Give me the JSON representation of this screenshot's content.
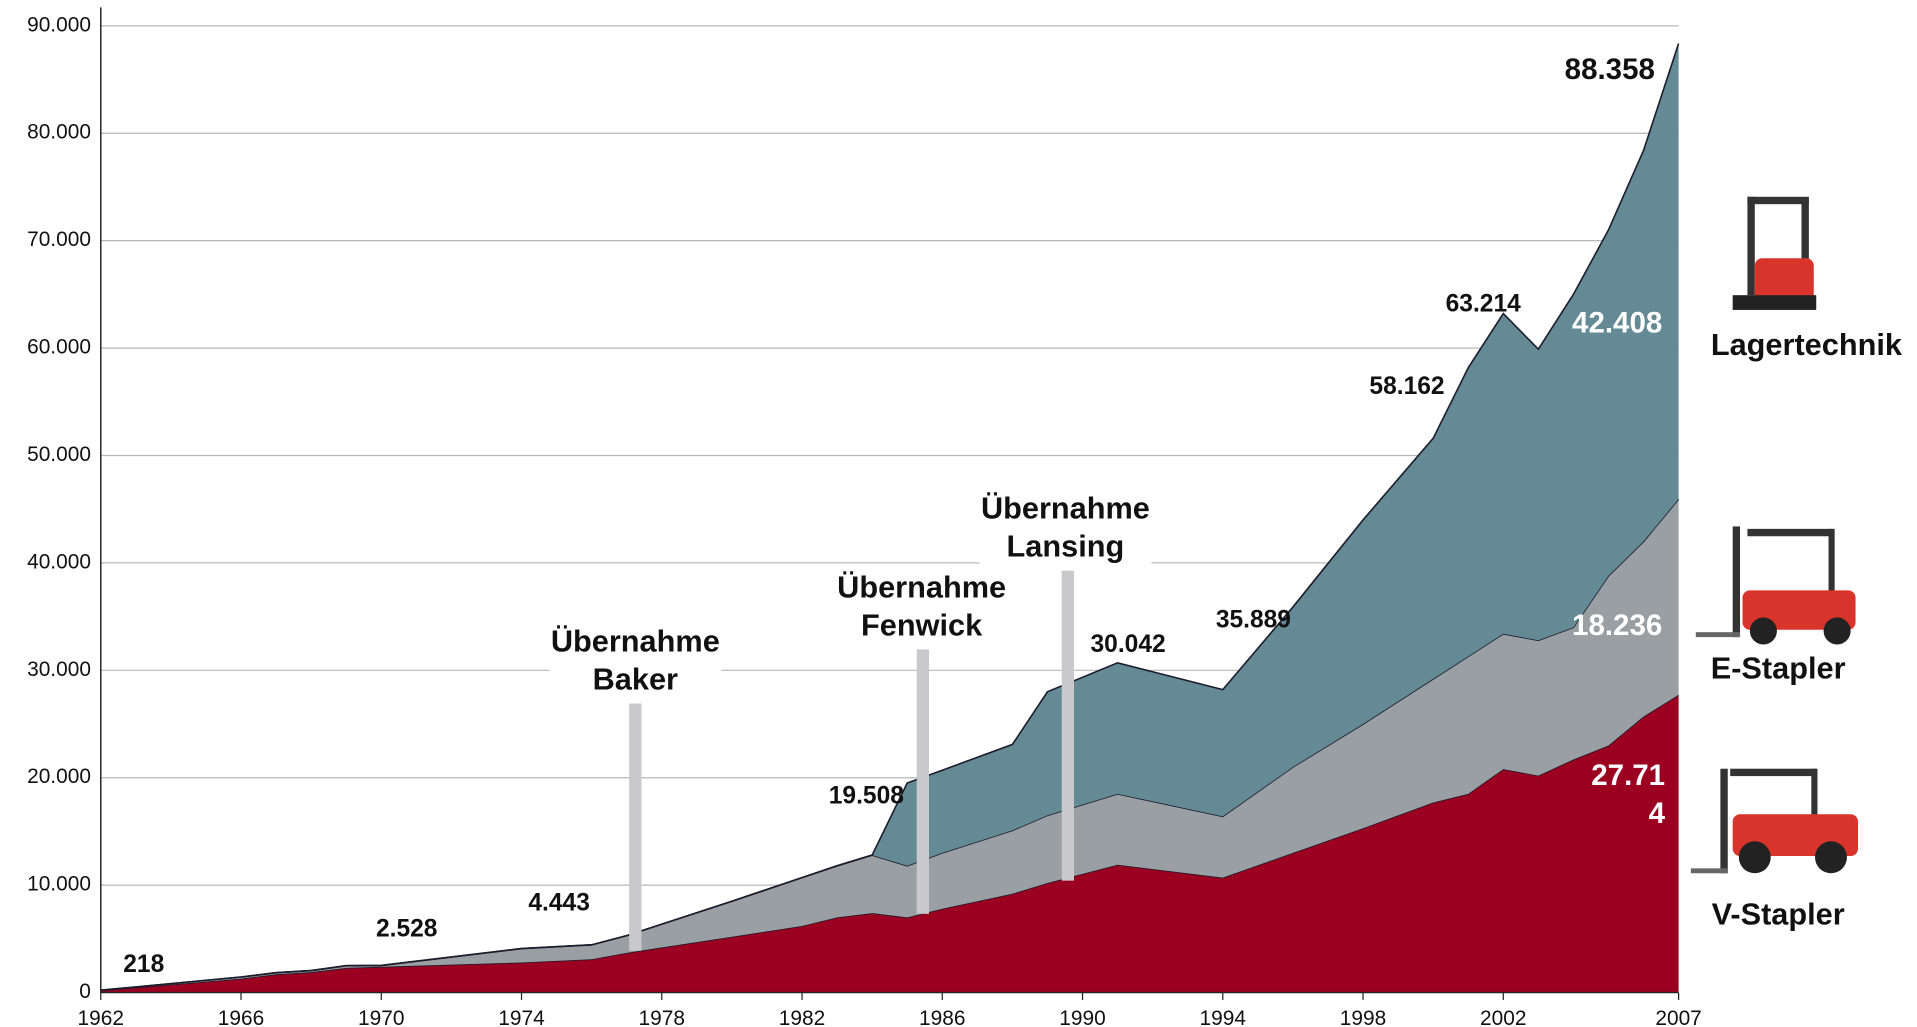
{
  "chart_data": {
    "type": "stacked_area",
    "x": [
      1962,
      1966,
      1967,
      1968,
      1969,
      1970,
      1974,
      1976,
      1977,
      1980,
      1982,
      1983,
      1984,
      1985,
      1986,
      1988,
      1989,
      1991,
      1994,
      1996,
      1998,
      2000,
      2001,
      2002,
      2003,
      2004,
      2005,
      2006,
      2007
    ],
    "series": [
      {
        "name": "V-Stapler",
        "color": "#9b0020",
        "values": [
          200,
          1300,
          1700,
          1900,
          2300,
          2400,
          2800,
          3100,
          3700,
          5200,
          6200,
          7000,
          7400,
          7000,
          7800,
          9200,
          10200,
          11900,
          10700,
          13000,
          15300,
          17700,
          18500,
          20800,
          20200,
          21700,
          23000,
          25700,
          27714
        ]
      },
      {
        "name": "E-Stapler",
        "color": "#9a9fa3",
        "values": [
          18,
          150,
          150,
          150,
          200,
          128,
          1300,
          1343,
          1600,
          3300,
          4500,
          4800,
          5400,
          4800,
          5200,
          5900,
          6300,
          6600,
          5700,
          8000,
          9700,
          11500,
          12800,
          12600,
          12600,
          12300,
          15800,
          16300,
          18236
        ]
      },
      {
        "name": "Lagertechnik",
        "color": "#648a96",
        "values": [
          0,
          0,
          0,
          0,
          0,
          0,
          0,
          0,
          0,
          0,
          0,
          0,
          0,
          7708,
          7700,
          8000,
          11500,
          12200,
          11800,
          14889,
          19000,
          22400,
          26862,
          29814,
          27100,
          31000,
          32200,
          36400,
          42408
        ]
      }
    ],
    "xlim": [
      1962,
      2007
    ],
    "xticks": [
      1962,
      1966,
      1970,
      1974,
      1978,
      1982,
      1986,
      1990,
      1994,
      1998,
      2002,
      2007
    ],
    "ylim": [
      0,
      90000
    ],
    "yticks": [
      0,
      {
        "value": 10000,
        "label": "10.000"
      },
      {
        "value": 20000,
        "label": "20.000"
      },
      {
        "value": 30000,
        "label": "30.000"
      },
      {
        "value": 40000,
        "label": "40.000"
      },
      {
        "value": 50000,
        "label": "50.000"
      },
      {
        "value": 60000,
        "label": "60.000"
      },
      {
        "value": 70000,
        "label": "70.000"
      },
      {
        "value": 80000,
        "label": "80.000"
      },
      {
        "value": 90000,
        "label": "90.000"
      }
    ],
    "grid": true,
    "annotations": [
      [
        "218"
      ],
      [
        "2.528"
      ],
      [
        "4.443"
      ],
      [
        "19.508"
      ],
      [
        "30.042"
      ],
      [
        "35.889"
      ],
      [
        "58.162"
      ],
      [
        "63.214"
      ],
      [
        "88.358"
      ],
      [
        "42.408"
      ],
      [
        "18.236"
      ],
      [
        "27.71",
        "4"
      ]
    ],
    "events": [
      [
        "Übernahme",
        "Baker"
      ],
      [
        "Übernahme",
        "Fenwick"
      ],
      [
        "Übernahme",
        "Lansing"
      ]
    ]
  }
}
